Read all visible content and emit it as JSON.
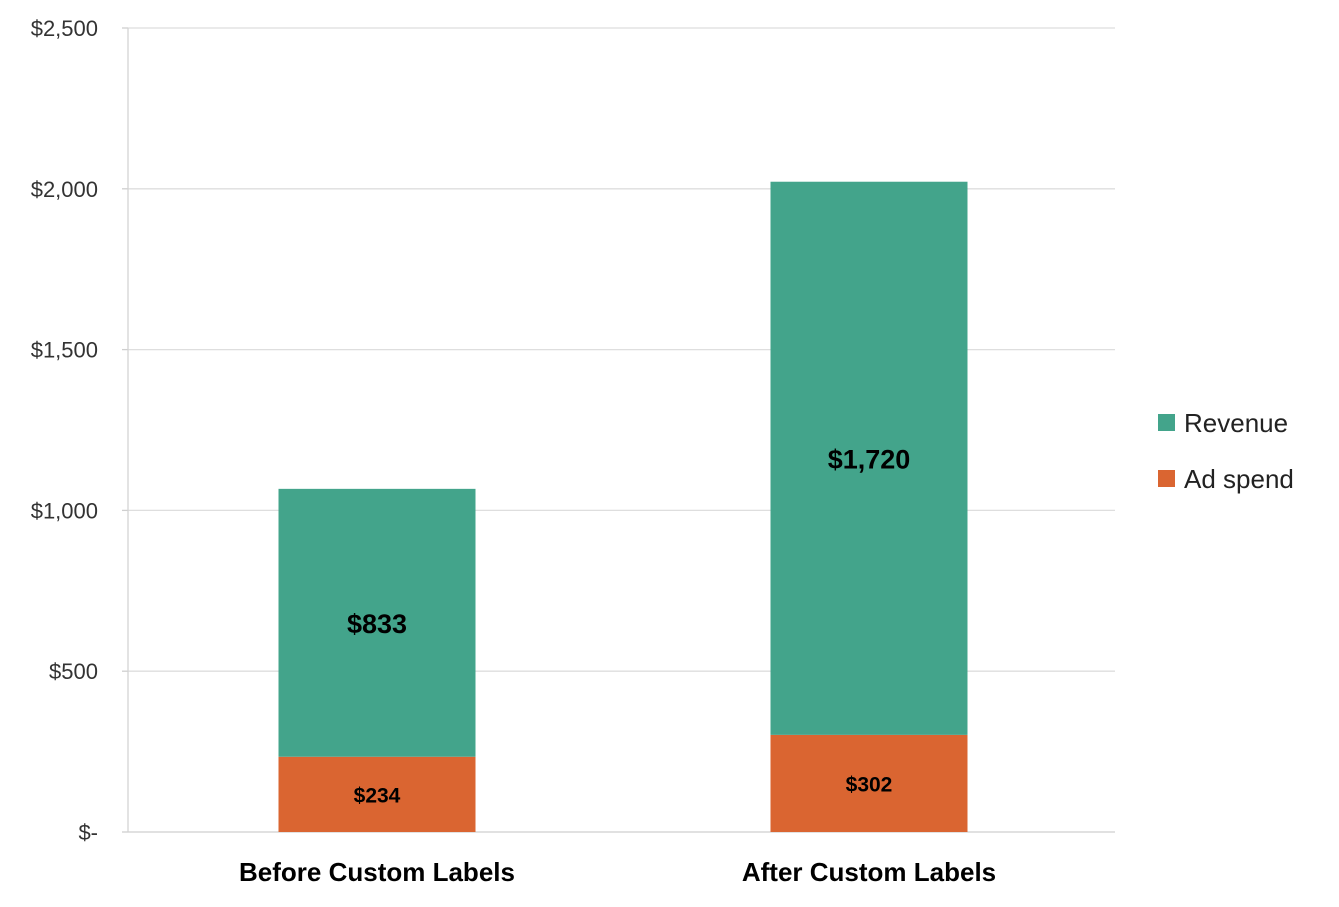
{
  "chart_data": {
    "type": "bar",
    "stacked": true,
    "categories": [
      "Before Custom Labels",
      "After Custom Labels"
    ],
    "series": [
      {
        "name": "Ad spend",
        "values": [
          234,
          302
        ],
        "labels": [
          "$234",
          "$302"
        ],
        "color": "#DA6531"
      },
      {
        "name": "Revenue",
        "values": [
          833,
          1720
        ],
        "labels": [
          "$833",
          "$1,720"
        ],
        "color": "#43A48B"
      }
    ],
    "ylim": [
      0,
      2500
    ],
    "yticks": [
      0,
      500,
      1000,
      1500,
      2000,
      2500
    ],
    "ytick_labels": [
      "$-",
      "$500",
      "$1,000",
      "$1,500",
      "$2,000",
      "$2,500"
    ],
    "grid": true,
    "legend": {
      "position": "right",
      "entries": [
        "Revenue",
        "Ad spend"
      ]
    },
    "title": "",
    "xlabel": "",
    "ylabel": ""
  }
}
